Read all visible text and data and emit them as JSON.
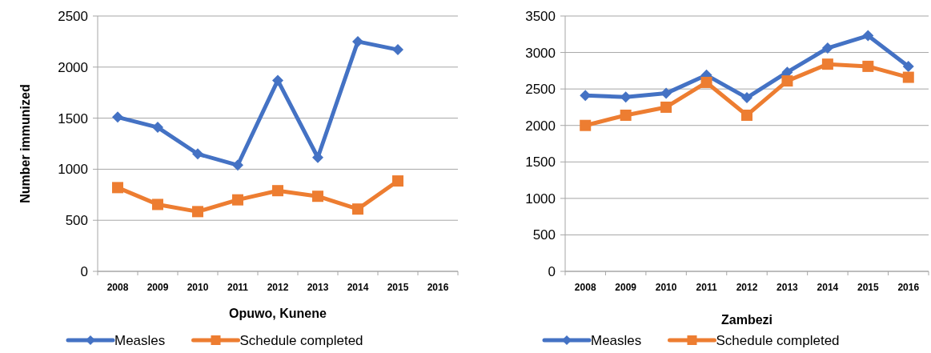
{
  "chart_data": [
    {
      "type": "line",
      "xlabel": "Opuwo, Kunene",
      "ylabel": "Number immunized",
      "categories": [
        "2008",
        "2009",
        "2010",
        "2011",
        "2012",
        "2013",
        "2014",
        "2015",
        "2016"
      ],
      "series": [
        {
          "name": "Measles",
          "color": "#4472c4",
          "marker": "diamond",
          "values": [
            1510,
            1410,
            1150,
            1040,
            1870,
            1115,
            2250,
            2170,
            null
          ]
        },
        {
          "name": "Schedule completed",
          "color": "#ed7d31",
          "marker": "square",
          "values": [
            820,
            655,
            585,
            700,
            790,
            735,
            610,
            885,
            null
          ]
        }
      ],
      "ylim": [
        0,
        2500
      ],
      "yticks": [
        0,
        500,
        1000,
        1500,
        2000,
        2500
      ],
      "grid": "y",
      "legend": "bottom"
    },
    {
      "type": "line",
      "xlabel": "Zambezi",
      "categories": [
        "2008",
        "2009",
        "2010",
        "2011",
        "2012",
        "2013",
        "2014",
        "2015",
        "2016"
      ],
      "series": [
        {
          "name": "Measles",
          "color": "#4472c4",
          "marker": "diamond",
          "values": [
            2410,
            2390,
            2440,
            2690,
            2380,
            2730,
            3060,
            3230,
            2810
          ]
        },
        {
          "name": "Schedule completed",
          "color": "#ed7d31",
          "marker": "square",
          "values": [
            2000,
            2140,
            2250,
            2590,
            2140,
            2610,
            2840,
            2810,
            2660
          ]
        }
      ],
      "ylim": [
        0,
        3500
      ],
      "yticks": [
        0,
        500,
        1000,
        1500,
        2000,
        2500,
        3000,
        3500
      ],
      "grid": "y",
      "legend": "bottom"
    }
  ]
}
